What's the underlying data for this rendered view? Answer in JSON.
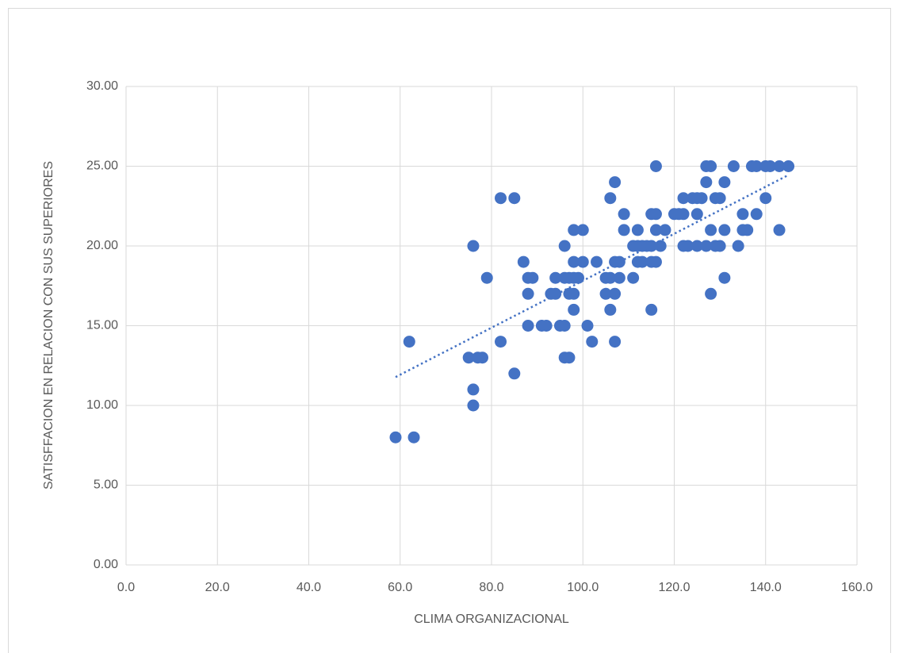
{
  "chart_data": {
    "type": "scatter",
    "x_label": "CLIMA ORGANIZACIONAL",
    "y_label": "SATISFFACION EN RELACION CON SUS SUPERIORES",
    "color": "#4472c4",
    "trendline": true,
    "trendline_style": "dotted",
    "grid": true,
    "xlim": [
      0,
      160
    ],
    "ylim": [
      0,
      30
    ],
    "xticks": [
      {
        "value": 0,
        "label": "0.0"
      },
      {
        "value": 20,
        "label": "20.0"
      },
      {
        "value": 40,
        "label": "40.0"
      },
      {
        "value": 60,
        "label": "60.0"
      },
      {
        "value": 80,
        "label": "80.0"
      },
      {
        "value": 100,
        "label": "100.0"
      },
      {
        "value": 120,
        "label": "120.0"
      },
      {
        "value": 140,
        "label": "140.0"
      },
      {
        "value": 160,
        "label": "160.0"
      }
    ],
    "yticks": [
      {
        "value": 0,
        "label": "0.00"
      },
      {
        "value": 5,
        "label": "5.00"
      },
      {
        "value": 10,
        "label": "10.00"
      },
      {
        "value": 15,
        "label": "15.00"
      },
      {
        "value": 20,
        "label": "20.00"
      },
      {
        "value": 25,
        "label": "25.00"
      },
      {
        "value": 30,
        "label": "30.00"
      }
    ],
    "x": [
      59,
      63,
      62,
      76,
      76,
      75,
      77,
      78,
      76,
      79,
      82,
      82,
      85,
      85,
      87,
      88,
      89,
      88,
      88,
      91,
      92,
      93,
      94,
      94,
      95,
      96,
      96,
      97,
      96,
      96,
      97,
      98,
      97,
      98,
      98,
      98,
      98,
      99,
      100,
      100,
      101,
      102,
      103,
      105,
      105,
      106,
      106,
      106,
      107,
      107,
      107,
      107,
      108,
      108,
      109,
      109,
      111,
      111,
      112,
      112,
      112,
      113,
      113,
      114,
      115,
      115,
      115,
      115,
      116,
      116,
      116,
      116,
      117,
      118,
      120,
      121,
      122,
      122,
      122,
      123,
      124,
      125,
      125,
      125,
      126,
      127,
      127,
      127,
      128,
      128,
      128,
      129,
      129,
      130,
      130,
      131,
      131,
      131,
      133,
      134,
      135,
      135,
      136,
      137,
      138,
      138,
      140,
      140,
      141,
      143,
      143,
      145
    ],
    "values": [
      8,
      8,
      14,
      10,
      11,
      13,
      13,
      13,
      20,
      18,
      14,
      23,
      23,
      12,
      19,
      18,
      18,
      17,
      15,
      15,
      15,
      17,
      17,
      18,
      15,
      15,
      13,
      13,
      20,
      18,
      17,
      17,
      18,
      19,
      18,
      21,
      16,
      18,
      19,
      21,
      15,
      14,
      19,
      18,
      17,
      23,
      18,
      16,
      24,
      19,
      17,
      14,
      19,
      18,
      22,
      21,
      20,
      18,
      21,
      20,
      19,
      20,
      19,
      20,
      22,
      20,
      19,
      16,
      25,
      22,
      21,
      19,
      20,
      21,
      22,
      22,
      23,
      22,
      20,
      20,
      23,
      23,
      22,
      20,
      23,
      25,
      24,
      20,
      25,
      21,
      17,
      23,
      20,
      23,
      20,
      24,
      21,
      18,
      25,
      20,
      22,
      21,
      21,
      25,
      25,
      22,
      25,
      23,
      25,
      25,
      21,
      25
    ]
  }
}
